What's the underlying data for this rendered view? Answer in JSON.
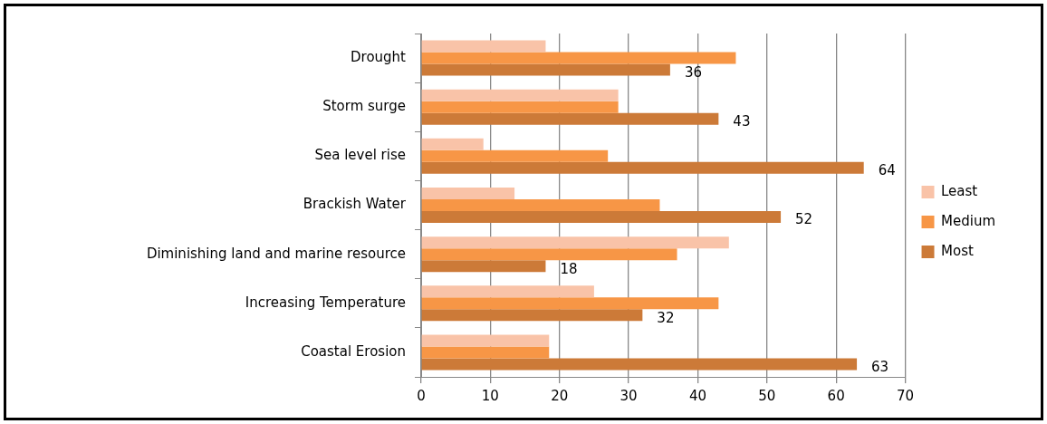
{
  "chart_data": {
    "type": "bar",
    "orientation": "horizontal",
    "categories": [
      "Drought",
      "Storm surge",
      "Sea level rise",
      "Brackish Water",
      "Diminishing land and marine resource",
      "Increasing Temperature",
      "Coastal Erosion"
    ],
    "series": [
      {
        "name": "Least",
        "color": "#f9c3a8",
        "values": [
          18,
          28.5,
          9,
          13.5,
          44.5,
          25,
          18.5
        ]
      },
      {
        "name": "Medium",
        "color": "#f79646",
        "values": [
          45.5,
          28.5,
          27,
          34.5,
          37,
          43,
          18.5
        ]
      },
      {
        "name": "Most",
        "color": "#cc7a38",
        "values": [
          36,
          43,
          64,
          52,
          18,
          32,
          63
        ],
        "value_labels": [
          "36",
          "43",
          "64",
          "52",
          "18",
          "32",
          "63"
        ]
      }
    ],
    "xlim": [
      0,
      70
    ],
    "xticks": [
      0,
      10,
      20,
      30,
      40,
      50,
      60,
      70
    ],
    "grid": "x",
    "legend": "right"
  }
}
